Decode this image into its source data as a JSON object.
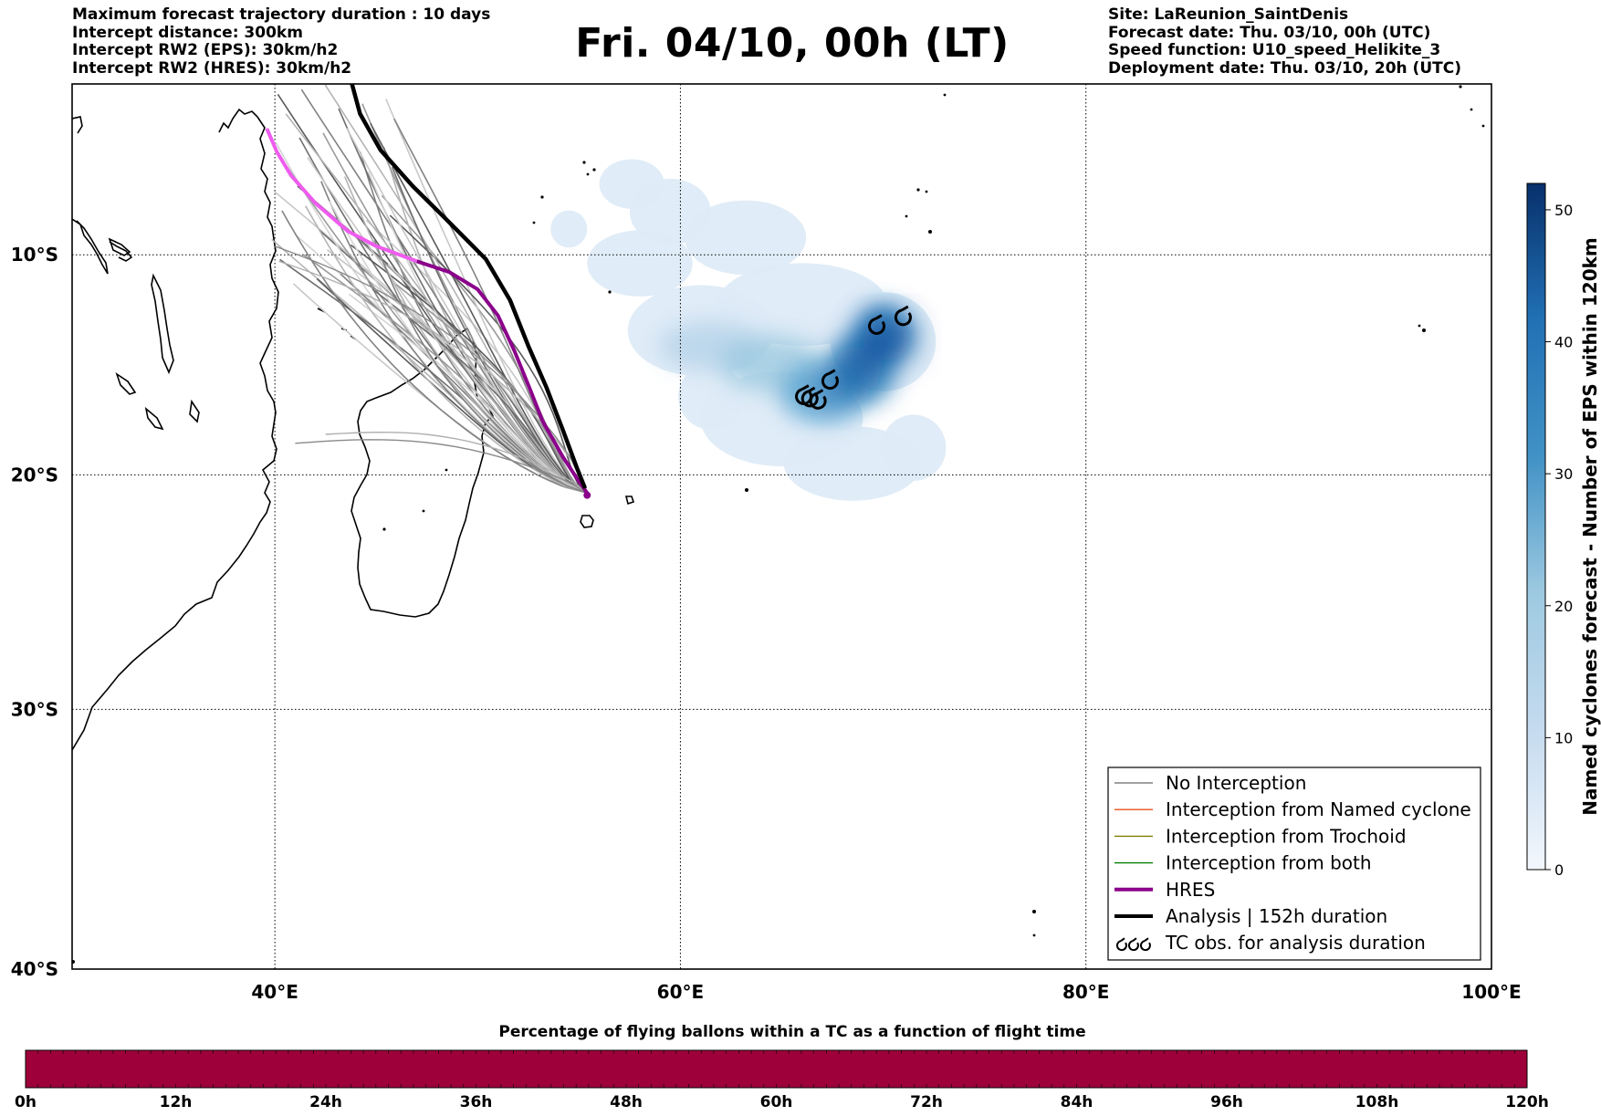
{
  "header_left": [
    "Maximum forecast trajectory duration : 10 days",
    "Intercept distance: 300km",
    "Intercept RW2 (EPS):  30km/h2",
    "Intercept RW2 (HRES): 30km/h2"
  ],
  "title": "Fri. 04/10, 00h (LT)",
  "header_right": [
    "Site: LaReunion_SaintDenis",
    "Forecast date: Thu. 03/10, 00h (UTC)",
    "Speed function: U10_speed_Helikite_3",
    "Deployment date: Thu. 03/10, 20h (UTC)"
  ],
  "map": {
    "lon_range": [
      30,
      100
    ],
    "lat_range": [
      -40,
      -2
    ],
    "lon_ticks": [
      {
        "value": 40,
        "label": "40°E"
      },
      {
        "value": 60,
        "label": "60°E"
      },
      {
        "value": 80,
        "label": "80°E"
      },
      {
        "value": 100,
        "label": "100°E"
      }
    ],
    "lat_ticks": [
      {
        "value": -10,
        "label": "10°S"
      },
      {
        "value": -20,
        "label": "20°S"
      },
      {
        "value": -30,
        "label": "30°S"
      },
      {
        "value": -40,
        "label": "40°S"
      }
    ],
    "grid": true,
    "grid_style": "dotted",
    "deployment_site": {
      "lon": 55.4,
      "lat": -20.9
    }
  },
  "chart_data": {
    "type": "map",
    "hres_track": [
      [
        55.4,
        -20.8
      ],
      [
        55.0,
        -20.3
      ],
      [
        54.2,
        -19.2
      ],
      [
        53.2,
        -17.6
      ],
      [
        52.6,
        -16.2
      ],
      [
        51.8,
        -14.4
      ],
      [
        51.0,
        -12.8
      ],
      [
        50.0,
        -11.6
      ],
      [
        48.6,
        -10.8
      ],
      [
        47.0,
        -10.3
      ],
      [
        45.0,
        -9.6
      ],
      [
        43.6,
        -8.9
      ],
      [
        42.0,
        -7.6
      ],
      [
        40.8,
        -6.3
      ],
      [
        40.1,
        -5.2
      ],
      [
        39.6,
        -4.1
      ]
    ],
    "analysis_track": [
      [
        55.3,
        -20.6
      ],
      [
        54.9,
        -19.7
      ],
      [
        54.2,
        -18.0
      ],
      [
        53.4,
        -16.1
      ],
      [
        52.5,
        -14.2
      ],
      [
        51.6,
        -12.1
      ],
      [
        50.4,
        -10.2
      ],
      [
        48.4,
        -8.3
      ],
      [
        46.8,
        -6.8
      ],
      [
        45.2,
        -5.1
      ],
      [
        44.2,
        -3.4
      ],
      [
        43.8,
        -2.0
      ]
    ],
    "tc_obs": [
      [
        71.0,
        -12.9
      ],
      [
        69.7,
        -13.3
      ],
      [
        67.4,
        -15.8
      ],
      [
        66.1,
        -16.5
      ],
      [
        66.4,
        -16.6
      ],
      [
        66.8,
        -16.7
      ]
    ],
    "colorbar": {
      "label": "Named cyclones forecast - Number of EPS within 120km",
      "min": 0,
      "max": 52,
      "ticks": [
        0,
        10,
        20,
        30,
        40,
        50
      ],
      "color_low": "#e6f0fa",
      "color_high": "#08306b"
    },
    "time_colorbar": {
      "title": "Percentage of flying ballons within a TC as a function of flight time",
      "ticks": [
        "0h",
        "12h",
        "24h",
        "36h",
        "48h",
        "60h",
        "72h",
        "84h",
        "96h",
        "108h",
        "120h"
      ],
      "fill_color": "#9e003a"
    },
    "legend": {
      "placement": "lower-right",
      "entries": [
        {
          "label": "No Interception",
          "color": "#808080",
          "style": "thin"
        },
        {
          "label": "Interception from Named cyclone",
          "color": "#e8501a",
          "style": "thin"
        },
        {
          "label": "Interception from Trochoid",
          "color": "#808000",
          "style": "thin"
        },
        {
          "label": "Interception from both",
          "color": "#008000",
          "style": "thin"
        },
        {
          "label": "HRES",
          "color": "#8b008b",
          "style": "thick"
        },
        {
          "label": "Analysis | 152h duration",
          "color": "#000000",
          "style": "thick"
        },
        {
          "label": "TC obs. for analysis duration",
          "color": "#000000",
          "style": "symbol"
        }
      ]
    }
  }
}
